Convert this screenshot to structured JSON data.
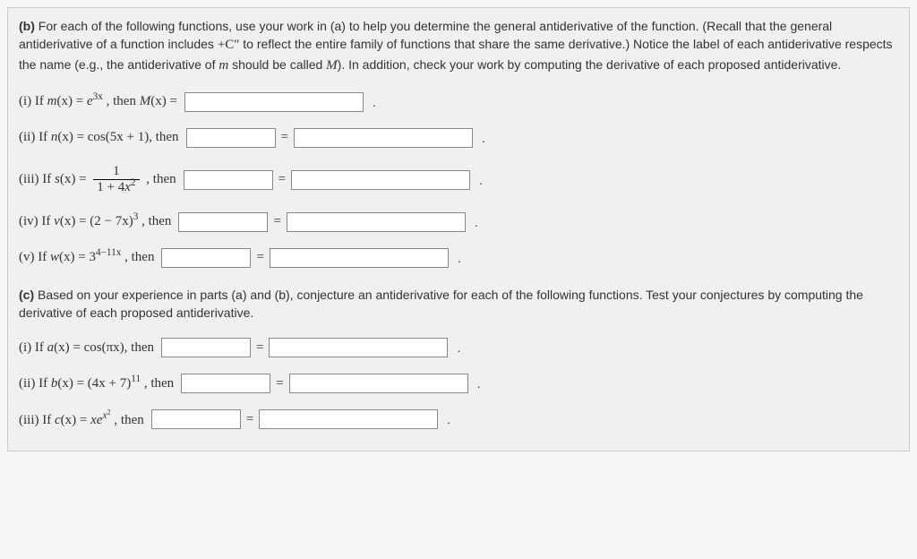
{
  "colors": {
    "background": "#f0f0f0",
    "border": "#cccccc",
    "text": "#333333",
    "input_border": "#888888",
    "input_bg": "#ffffff"
  },
  "intro": {
    "bold_label": "(b)",
    "text1": " For each of the following functions, use your work in (a) to help you determine the general antiderivative of the function. (Recall that the general antiderivative of a function includes ",
    "plus_c": "+C\"",
    "text2": " to reflect the entire family of functions that share the same derivative.) Notice the label of each antiderivative respects the name (e.g., the antiderivative of ",
    "m_var": "m",
    "text3": " should be called ",
    "big_m": "M",
    "text4": "). In addition, check your work by computing the derivative of each proposed antiderivative."
  },
  "b": {
    "i": {
      "prefix": "(i) If ",
      "func": "m",
      "var": "(x) = ",
      "expr": "e",
      "sup": "3x",
      "mid": " , then ",
      "anti": "M",
      "anti_suffix": "(x) ="
    },
    "ii": {
      "prefix": "(ii) If ",
      "func": "n",
      "var": "(x) = cos(5x + 1), then"
    },
    "iii": {
      "prefix": "(iii) If ",
      "func": "s",
      "var": "(x) = ",
      "frac_top": "1",
      "frac_bot_a": "1 + 4",
      "frac_bot_var": "x",
      "frac_bot_sup": "2",
      "mid": " , then"
    },
    "iv": {
      "prefix": "(iv) If ",
      "func": "v",
      "var": "(x) = (2 − 7x)",
      "sup": "3",
      "mid": " , then"
    },
    "v": {
      "prefix": "(v) If ",
      "func": "w",
      "var": "(x) = 3",
      "sup": "4−11x",
      "mid": " , then"
    }
  },
  "section_c": {
    "bold_label": "(c)",
    "text": " Based on your experience in parts (a) and (b), conjecture an antiderivative for each of the following functions. Test your conjectures by computing the derivative of each proposed antiderivative."
  },
  "c": {
    "i": {
      "prefix": "(i) If ",
      "func": "a",
      "var": "(x) = cos(πx), then"
    },
    "ii": {
      "prefix": "(ii) If ",
      "func": "b",
      "var": "(x) = (4x + 7)",
      "sup": "11",
      "mid": " , then"
    },
    "iii": {
      "prefix": "(iii) If ",
      "func": "c",
      "var": "(x) = ",
      "xe": "xe",
      "sup_outer": "x",
      "sup_inner": "2",
      "mid": " , then"
    }
  },
  "symbols": {
    "equals": "=",
    "period": "."
  }
}
